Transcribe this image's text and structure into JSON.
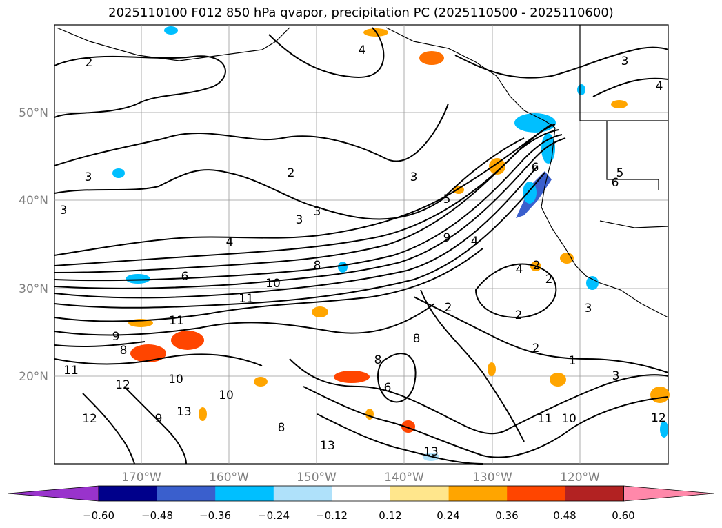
{
  "title": "2025110100 F012 850 hPa qvapor, precipitation PC (2025110500 - 2025110600)",
  "lat_labels": [
    "50°N",
    "40°N",
    "30°N",
    "20°N"
  ],
  "lon_labels": [
    "170°W",
    "160°W",
    "150°W",
    "140°W",
    "130°W",
    "120°W"
  ],
  "colorbar": {
    "tick_labels": [
      "−0.60",
      "−0.48",
      "−0.36",
      "−0.24",
      "−0.12",
      "0.12",
      "0.24",
      "0.36",
      "0.48",
      "0.60"
    ],
    "colors": [
      "#9933cc",
      "#00008b",
      "#3a5fcd",
      "#00bfff",
      "#afe1fa",
      "#ffffff",
      "#ffe68c",
      "#ffa500",
      "#ff4500",
      "#b22222",
      "#ff88aa"
    ]
  },
  "contour_labels": [
    "2",
    "4",
    "3",
    "4",
    "3",
    "2",
    "3",
    "5",
    "6",
    "4",
    "3",
    "3",
    "3",
    "9",
    "6",
    "4",
    "8",
    "10",
    "11",
    "11",
    "9",
    "8",
    "11",
    "10",
    "12",
    "10",
    "12",
    "9",
    "13",
    "2",
    "2",
    "2",
    "3",
    "1",
    "11",
    "10",
    "13",
    "8",
    "6",
    "8",
    "2",
    "4",
    "2",
    "3",
    "5",
    "6",
    "8",
    "12",
    "13"
  ]
}
